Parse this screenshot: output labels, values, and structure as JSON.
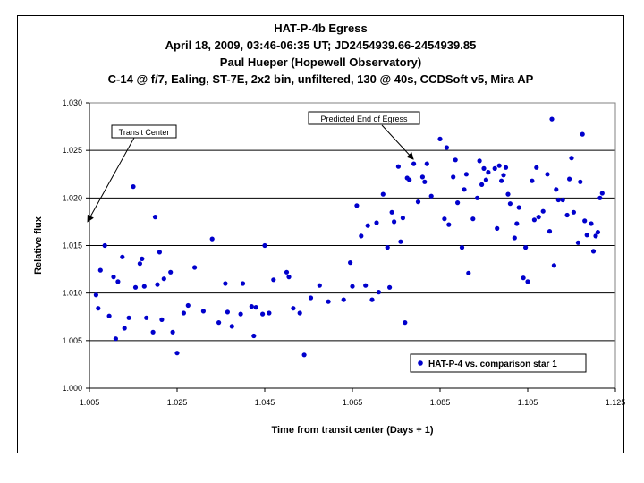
{
  "chart_data": {
    "type": "scatter",
    "title_lines": [
      "HAT-P-4b Egress",
      "April 18, 2009, 03:46-06:35 UT; JD2454939.66-2454939.85",
      "Paul Hueper (Hopewell Observatory)",
      "C-14 @ f/7, Ealing, ST-7E, 2x2 bin, unfiltered, 130 @ 40s, CCDSoft v5,  Mira AP"
    ],
    "xlabel": "Time from transit center (Days + 1)",
    "ylabel": "Relative flux",
    "xlim": [
      1.005,
      1.125
    ],
    "ylim": [
      1.0,
      1.03
    ],
    "xticks": [
      "1.005",
      "1.025",
      "1.045",
      "1.065",
      "1.085",
      "1.105",
      "1.125"
    ],
    "yticks": [
      "1.000",
      "1.005",
      "1.010",
      "1.015",
      "1.020",
      "1.025",
      "1.030"
    ],
    "grid": "horizontal",
    "legend_position": "bottom-right",
    "color": "#0000cc",
    "annotations": [
      {
        "text": "Transit Center",
        "x": 1.005,
        "y": 1.0177
      },
      {
        "text": "Predicted End of Egress",
        "x": 1.0793,
        "y": 1.0237
      }
    ],
    "series": [
      {
        "name": "HAT-P-4 vs. comparison star 1",
        "x": [
          1.0065,
          1.007,
          1.0075,
          1.0085,
          1.0095,
          1.0105,
          1.011,
          1.0115,
          1.0125,
          1.013,
          1.014,
          1.015,
          1.0155,
          1.0165,
          1.017,
          1.0175,
          1.018,
          1.0195,
          1.02,
          1.0205,
          1.021,
          1.0215,
          1.022,
          1.0235,
          1.024,
          1.025,
          1.0265,
          1.0275,
          1.029,
          1.031,
          1.033,
          1.0345,
          1.036,
          1.0365,
          1.0375,
          1.0395,
          1.04,
          1.042,
          1.0425,
          1.043,
          1.0445,
          1.045,
          1.046,
          1.047,
          1.05,
          1.0505,
          1.0515,
          1.053,
          1.054,
          1.0555,
          1.0575,
          1.0595,
          1.063,
          1.0645,
          1.065,
          1.066,
          1.067,
          1.068,
          1.0685,
          1.0695,
          1.0705,
          1.071,
          1.072,
          1.073,
          1.0735,
          1.074,
          1.0745,
          1.0755,
          1.076,
          1.0765,
          1.077,
          1.0775,
          1.078,
          1.079,
          1.08,
          1.081,
          1.0815,
          1.082,
          1.083,
          1.085,
          1.086,
          1.0865,
          1.087,
          1.088,
          1.0885,
          1.089,
          1.09,
          1.0905,
          1.091,
          1.0915,
          1.0925,
          1.0935,
          1.094,
          1.0945,
          1.095,
          1.0955,
          1.096,
          1.0975,
          1.098,
          1.0985,
          1.099,
          1.0995,
          1.1,
          1.1005,
          1.101,
          1.102,
          1.1025,
          1.103,
          1.104,
          1.1045,
          1.105,
          1.106,
          1.1065,
          1.107,
          1.1075,
          1.1085,
          1.1095,
          1.11,
          1.1105,
          1.111,
          1.1115,
          1.112,
          1.113,
          1.114,
          1.1145,
          1.115,
          1.1155,
          1.1165,
          1.117,
          1.1175,
          1.118,
          1.1185,
          1.1195,
          1.12,
          1.1205,
          1.121,
          1.1215,
          1.122
        ],
        "y": [
          1.0098,
          1.0084,
          1.0124,
          1.015,
          1.0076,
          1.0117,
          1.0052,
          1.0112,
          1.0138,
          1.0063,
          1.0074,
          1.0212,
          1.0106,
          1.0131,
          1.0136,
          1.0107,
          1.0074,
          1.0059,
          1.018,
          1.0109,
          1.0143,
          1.0072,
          1.0115,
          1.0122,
          1.0059,
          1.0037,
          1.0079,
          1.0087,
          1.0127,
          1.0081,
          1.0157,
          1.0069,
          1.011,
          1.008,
          1.0065,
          1.0078,
          1.011,
          1.0086,
          1.0055,
          1.0085,
          1.0078,
          1.015,
          1.0079,
          1.0114,
          1.0122,
          1.0117,
          1.0084,
          1.0079,
          1.0035,
          1.0095,
          1.0108,
          1.0091,
          1.0093,
          1.0132,
          1.0107,
          1.0192,
          1.016,
          1.0108,
          1.0171,
          1.0093,
          1.0174,
          1.0101,
          1.0204,
          1.0148,
          1.0106,
          1.0185,
          1.0175,
          1.0233,
          1.0154,
          1.0179,
          1.0069,
          1.0221,
          1.0219,
          1.0236,
          1.0196,
          1.0222,
          1.0217,
          1.0236,
          1.0202,
          1.0262,
          1.0178,
          1.0253,
          1.0172,
          1.0222,
          1.024,
          1.0195,
          1.0148,
          1.0209,
          1.0225,
          1.0121,
          1.0178,
          1.02,
          1.0239,
          1.0214,
          1.0231,
          1.0219,
          1.0227,
          1.0231,
          1.0168,
          1.0234,
          1.0218,
          1.0224,
          1.0232,
          1.0204,
          1.0194,
          1.0158,
          1.0173,
          1.019,
          1.0116,
          1.0148,
          1.0112,
          1.0218,
          1.0177,
          1.0232,
          1.018,
          1.0186,
          1.0225,
          1.0165,
          1.0283,
          1.0129,
          1.0209,
          1.0198,
          1.0198,
          1.0182,
          1.022,
          1.0242,
          1.0185,
          1.0153,
          1.0217,
          1.0267,
          1.0176,
          1.0161,
          1.0173,
          1.0144,
          1.016,
          1.0164,
          1.02,
          1.0205
        ]
      }
    ]
  }
}
